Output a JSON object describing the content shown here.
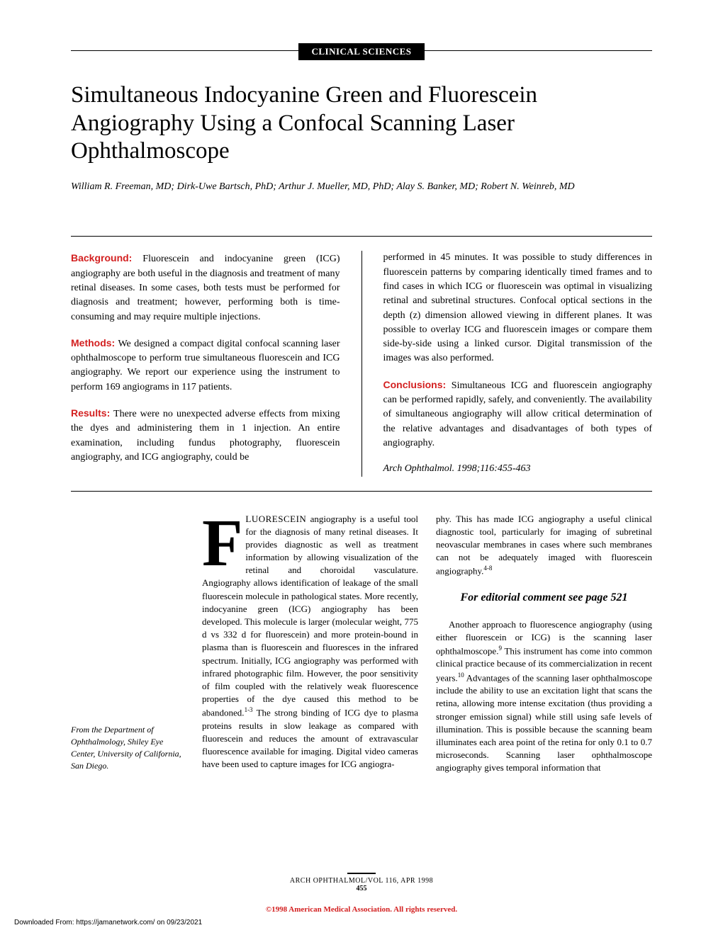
{
  "section_label": "CLINICAL SCIENCES",
  "title": "Simultaneous Indocyanine Green and Fluorescein Angiography Using a Confocal Scanning Laser Ophthalmoscope",
  "authors": "William R. Freeman, MD; Dirk-Uwe Bartsch, PhD; Arthur J. Mueller, MD, PhD; Alay S. Banker, MD; Robert N. Weinreb, MD",
  "abstract": {
    "background": {
      "heading": "Background:",
      "text": "Fluorescein and indocyanine green (ICG) angiography are both useful in the diagnosis and treatment of many retinal diseases. In some cases, both tests must be performed for diagnosis and treatment; however, performing both is time-consuming and may require multiple injections."
    },
    "methods": {
      "heading": "Methods:",
      "text": "We designed a compact digital confocal scanning laser ophthalmoscope to perform true simultaneous fluorescein and ICG angiography. We report our experience using the instrument to perform 169 angiograms in 117 patients."
    },
    "results": {
      "heading": "Results:",
      "text": "There were no unexpected adverse effects from mixing the dyes and administering them in 1 injection. An entire examination, including fundus photography, fluorescein angiography, and ICG angiography, could be"
    },
    "results_cont": "performed in 45 minutes. It was possible to study differences in fluorescein patterns by comparing identically timed frames and to find cases in which ICG or fluorescein was optimal in visualizing retinal and subretinal structures. Confocal optical sections in the depth (z) dimension allowed viewing in different planes. It was possible to overlay ICG and fluorescein images or compare them side-by-side using a linked cursor. Digital transmission of the images was also performed.",
    "conclusions": {
      "heading": "Conclusions:",
      "text": "Simultaneous ICG and fluorescein angiography can be performed rapidly, safely, and conveniently. The availability of simultaneous angiography will allow critical determination of the relative advantages and disadvantages of both types of angiography."
    },
    "citation": "Arch Ophthalmol. 1998;116:455-463"
  },
  "body": {
    "dropcap": "F",
    "first_word_caps": "LUORESCEIN",
    "col1_text": " angiography is a useful tool for the diagnosis of many retinal diseases. It provides diagnostic as well as treatment information by allowing visualization of the retinal and choroidal vasculature. Angiography allows identification of leakage of the small fluorescein molecule in pathological states. More recently, indocyanine green (ICG) angiography has been developed. This molecule is larger (molecular weight, 775 d vs 332 d for fluorescein) and more protein-bound in plasma than is fluorescein and fluoresces in the infrared spectrum. Initially, ICG angiography was performed with infrared photographic film. However, the poor sensitivity of film coupled with the relatively weak fluorescence properties of the dye caused this method to be abandoned.",
    "col1_text2": " The strong binding of ICG dye to plasma proteins results in slow leakage as compared with fluorescein and reduces the amount of extravascular fluorescence available for imaging. Digital video cameras have been used to capture images for ICG angiogra-",
    "col2_text1": "phy. This has made ICG angiography a useful clinical diagnostic tool, particularly for imaging of subretinal neovascular membranes in cases where such membranes can not be adequately imaged with fluorescein angiography.",
    "editorial_note": "For editorial comment see page 521",
    "col2_text2": "Another approach to fluorescence angiography (using either fluorescein or ICG) is the scanning laser ophthalmoscope.",
    "col2_text3": " This instrument has come into common clinical practice because of its commercialization in recent years.",
    "col2_text4": " Advantages of the scanning laser ophthalmoscope include the ability to use an excitation light that scans the retina, allowing more intense excitation (thus providing a stronger emission signal) while still using safe levels of illumination. This is possible because the scanning beam illuminates each area point of the retina for only 0.1 to 0.7 microseconds. Scanning laser ophthalmoscope angiography gives temporal information that"
  },
  "affiliation": "From the Department of Ophthalmology, Shiley Eye Center, University of California, San Diego.",
  "footer": {
    "journal": "ARCH OPHTHALMOL/VOL 116, APR 1998",
    "page": "455",
    "copyright": "©1998 American Medical Association. All rights reserved."
  },
  "download_info": "Downloaded From: https://jamanetwork.com/ on 09/23/2021"
}
